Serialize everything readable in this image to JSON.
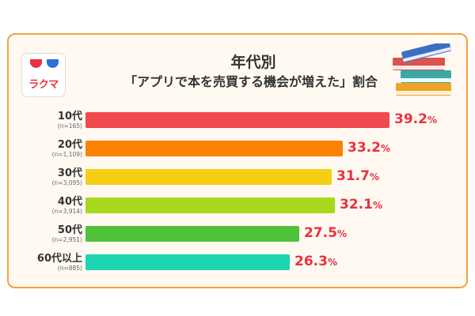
{
  "logo": {
    "text": "ラクマ"
  },
  "chart_data": {
    "type": "bar",
    "orientation": "horizontal",
    "title": "年代別",
    "subtitle": "「アプリで本を売買する機会が増えた」割合",
    "categories": [
      "10代",
      "20代",
      "30代",
      "40代",
      "50代",
      "60代以上"
    ],
    "sample_sizes": [
      "(n=165)",
      "(n=1,109)",
      "(n=3,095)",
      "(n=3,914)",
      "(n=2,951)",
      "(n=885)"
    ],
    "values": [
      39.2,
      33.2,
      31.7,
      32.1,
      27.5,
      26.3
    ],
    "value_labels": [
      "39.2",
      "33.2",
      "31.7",
      "32.1",
      "27.5",
      "26.3"
    ],
    "unit": "%",
    "bar_colors": [
      "#f04a4e",
      "#fb8200",
      "#f5cf13",
      "#a8d81b",
      "#4fc238",
      "#1cd6b2"
    ],
    "value_color": "#e8323c",
    "xlim": [
      0,
      40
    ]
  }
}
